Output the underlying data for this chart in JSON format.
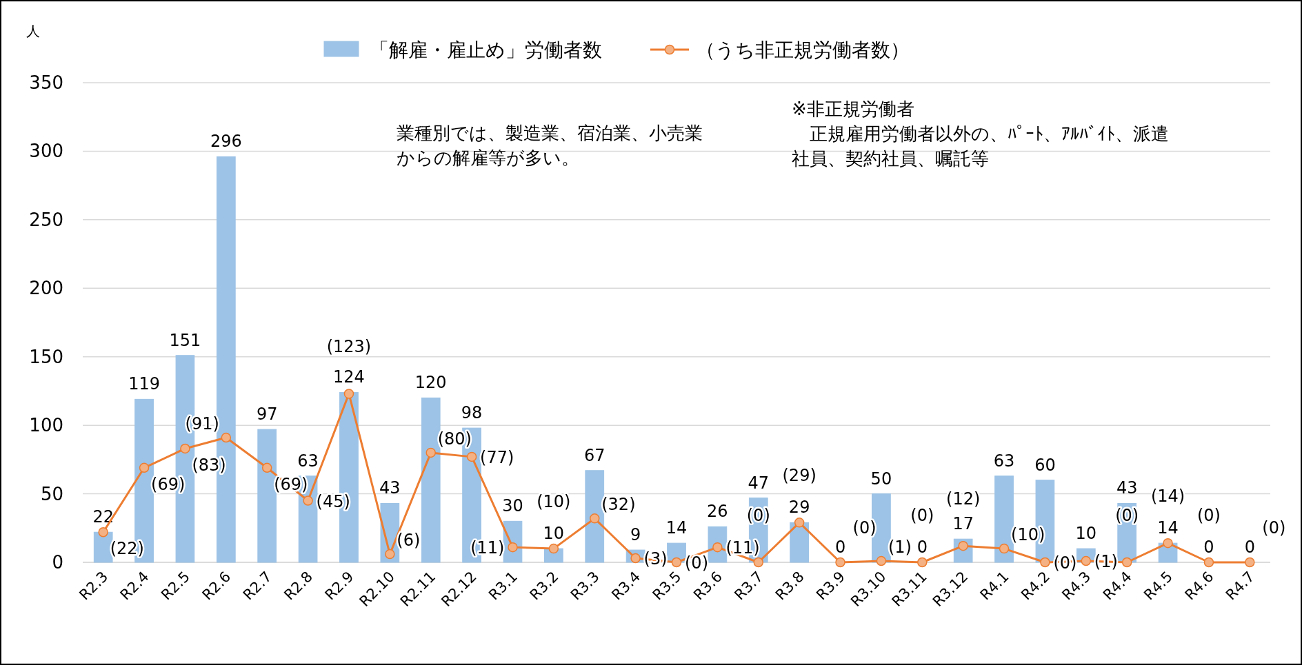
{
  "chart_data": {
    "type": "bar",
    "ylabel": "人",
    "ylim": [
      0,
      350
    ],
    "yticks": [
      0,
      50,
      100,
      150,
      200,
      250,
      300,
      350
    ],
    "grid": "y",
    "legend": "top",
    "categories": [
      "R2.3",
      "R2.4",
      "R2.5",
      "R2.6",
      "R2.7",
      "R2.8",
      "R2.9",
      "R2.10",
      "R2.11",
      "R2.12",
      "R3.1",
      "R3.2",
      "R3.3",
      "R3.4",
      "R3.5",
      "R3.6",
      "R3.7",
      "R3.8",
      "R3.9",
      "R3.10",
      "R3.11",
      "R3.12",
      "R4.1",
      "R4.2",
      "R4.3",
      "R4.4",
      "R4.5",
      "R4.6",
      "R4.7"
    ],
    "series": [
      {
        "name": "「解雇・雇止め」労働者数",
        "color": "#9dc3e6",
        "values": [
          22,
          119,
          151,
          296,
          97,
          63,
          124,
          43,
          120,
          98,
          30,
          10,
          67,
          9,
          14,
          26,
          47,
          29,
          0,
          50,
          0,
          17,
          63,
          60,
          10,
          43,
          14,
          0,
          0
        ],
        "value_labels": [
          "22",
          "119",
          "151",
          "296",
          "97",
          "63",
          "124",
          "43",
          "120",
          "98",
          "30",
          "10",
          "67",
          "9",
          "14",
          "26",
          "47",
          "29",
          "0",
          "50",
          "0",
          "17",
          "63",
          "60",
          "10",
          "43",
          "14",
          "0",
          "0"
        ]
      },
      {
        "name": "（うち非正規労働者数）",
        "type": "line",
        "color": "#ed7d31",
        "marker": "circle",
        "values": [
          22,
          69,
          83,
          91,
          69,
          45,
          123,
          6,
          80,
          77,
          11,
          10,
          32,
          3,
          0,
          11,
          0,
          29,
          0,
          1,
          0,
          12,
          10,
          0,
          1,
          0,
          14,
          0,
          0
        ],
        "value_labels": [
          "(22)",
          "(69)",
          "(83)",
          "(91)",
          "(69)",
          "(45)",
          "(123)",
          "(6)",
          "(80)",
          "(77)",
          "(11)",
          "(10)",
          "(32)",
          "(3)",
          "(0)",
          "(11)",
          "(0)",
          "(29)",
          "(0)",
          "(1)",
          "(0)",
          "(12)",
          "(10)",
          "(0)",
          "(1)",
          "(0)",
          "(14)",
          "(0)",
          "(0)"
        ]
      }
    ],
    "annotations": [
      "業種別では、製造業、宿泊業、小売業からの解雇等が多い。",
      "※非正規労働者",
      "正規雇用労働者以外の、ﾊﾟｰﾄ、ｱﾙﾊﾞｲﾄ、派遣社員、契約社員、嘱託等"
    ]
  }
}
